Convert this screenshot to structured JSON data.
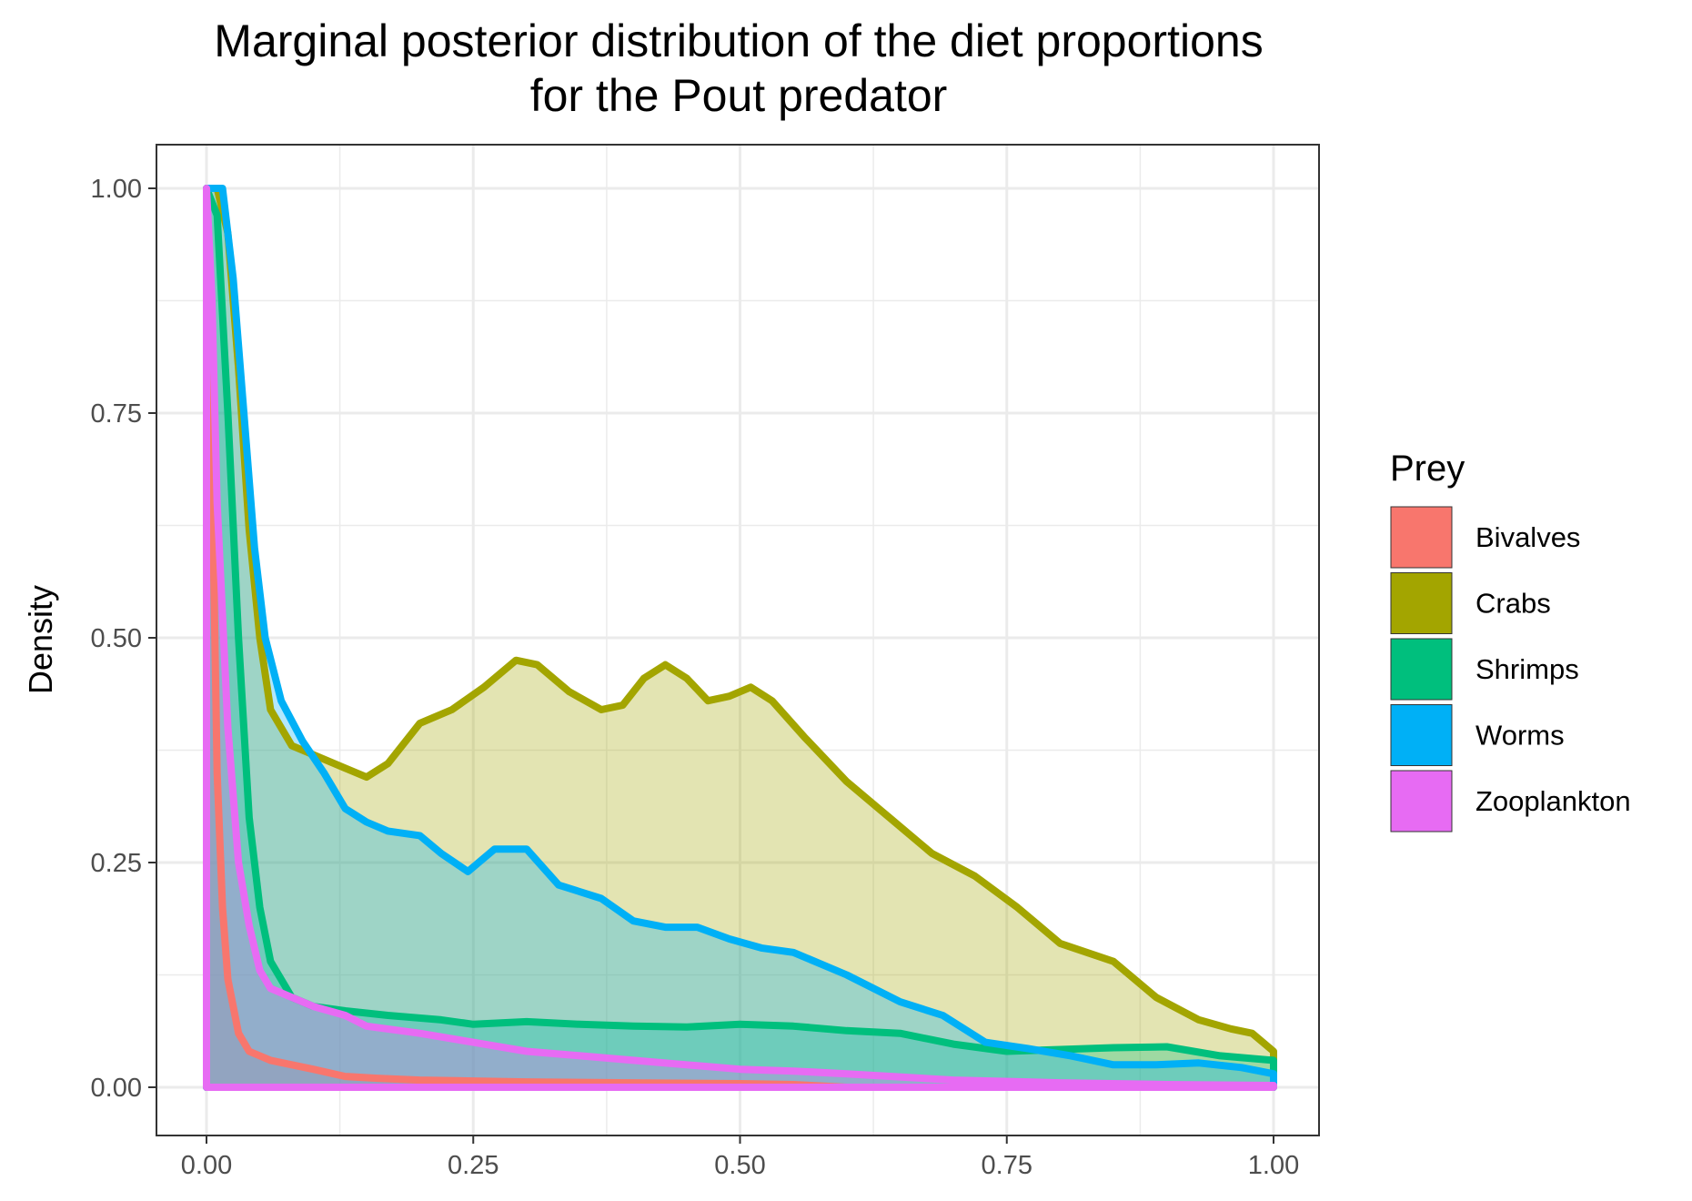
{
  "chart_data": {
    "type": "area",
    "title_lines": [
      "Marginal posterior distribution of the diet proportions",
      "for the Pout predator"
    ],
    "xlabel": "",
    "ylabel": "Density",
    "xlim": [
      0,
      1
    ],
    "ylim": [
      0,
      1
    ],
    "x_ticks": [
      "0.00",
      "0.25",
      "0.50",
      "0.75",
      "1.00"
    ],
    "y_ticks": [
      "0.00",
      "0.25",
      "0.50",
      "0.75",
      "1.00"
    ],
    "grid": true,
    "legend": {
      "title": "Prey",
      "position": "right"
    },
    "series": [
      {
        "name": "Bivalves",
        "color": "#F8766D",
        "points": [
          [
            0,
            1.0
          ],
          [
            0.005,
            0.7
          ],
          [
            0.01,
            0.35
          ],
          [
            0.015,
            0.2
          ],
          [
            0.02,
            0.12
          ],
          [
            0.03,
            0.06
          ],
          [
            0.04,
            0.04
          ],
          [
            0.06,
            0.03
          ],
          [
            0.08,
            0.025
          ],
          [
            0.1,
            0.02
          ],
          [
            0.13,
            0.012
          ],
          [
            0.16,
            0.01
          ],
          [
            0.2,
            0.008
          ],
          [
            0.25,
            0.007
          ],
          [
            0.3,
            0.006
          ],
          [
            0.4,
            0.005
          ],
          [
            0.5,
            0.004
          ],
          [
            0.55,
            0.003
          ],
          [
            0.6,
            0.0
          ]
        ]
      },
      {
        "name": "Crabs",
        "color": "#A3A500",
        "points": [
          [
            0,
            1.0
          ],
          [
            0.01,
            1.0
          ],
          [
            0.02,
            0.95
          ],
          [
            0.03,
            0.8
          ],
          [
            0.04,
            0.62
          ],
          [
            0.05,
            0.5
          ],
          [
            0.06,
            0.42
          ],
          [
            0.08,
            0.38
          ],
          [
            0.1,
            0.37
          ],
          [
            0.13,
            0.355
          ],
          [
            0.15,
            0.345
          ],
          [
            0.17,
            0.36
          ],
          [
            0.2,
            0.405
          ],
          [
            0.23,
            0.42
          ],
          [
            0.26,
            0.445
          ],
          [
            0.29,
            0.475
          ],
          [
            0.31,
            0.47
          ],
          [
            0.34,
            0.44
          ],
          [
            0.37,
            0.42
          ],
          [
            0.39,
            0.425
          ],
          [
            0.41,
            0.455
          ],
          [
            0.43,
            0.47
          ],
          [
            0.45,
            0.455
          ],
          [
            0.47,
            0.43
          ],
          [
            0.49,
            0.435
          ],
          [
            0.51,
            0.445
          ],
          [
            0.53,
            0.43
          ],
          [
            0.56,
            0.39
          ],
          [
            0.6,
            0.34
          ],
          [
            0.64,
            0.3
          ],
          [
            0.68,
            0.26
          ],
          [
            0.72,
            0.235
          ],
          [
            0.76,
            0.2
          ],
          [
            0.8,
            0.16
          ],
          [
            0.85,
            0.14
          ],
          [
            0.89,
            0.1
          ],
          [
            0.93,
            0.075
          ],
          [
            0.96,
            0.065
          ],
          [
            0.98,
            0.06
          ],
          [
            1.0,
            0.04
          ]
        ]
      },
      {
        "name": "Shrimps",
        "color": "#00BF7D",
        "points": [
          [
            0,
            1.0
          ],
          [
            0.01,
            0.97
          ],
          [
            0.02,
            0.75
          ],
          [
            0.03,
            0.5
          ],
          [
            0.04,
            0.3
          ],
          [
            0.05,
            0.2
          ],
          [
            0.06,
            0.14
          ],
          [
            0.08,
            0.1
          ],
          [
            0.1,
            0.09
          ],
          [
            0.13,
            0.085
          ],
          [
            0.17,
            0.08
          ],
          [
            0.22,
            0.075
          ],
          [
            0.25,
            0.07
          ],
          [
            0.3,
            0.073
          ],
          [
            0.35,
            0.07
          ],
          [
            0.4,
            0.068
          ],
          [
            0.45,
            0.067
          ],
          [
            0.5,
            0.07
          ],
          [
            0.55,
            0.068
          ],
          [
            0.6,
            0.063
          ],
          [
            0.65,
            0.06
          ],
          [
            0.7,
            0.048
          ],
          [
            0.75,
            0.04
          ],
          [
            0.8,
            0.042
          ],
          [
            0.85,
            0.044
          ],
          [
            0.9,
            0.045
          ],
          [
            0.95,
            0.035
          ],
          [
            1.0,
            0.03
          ]
        ]
      },
      {
        "name": "Worms",
        "color": "#00B0F6",
        "points": [
          [
            0,
            1.0
          ],
          [
            0.015,
            1.0
          ],
          [
            0.025,
            0.9
          ],
          [
            0.035,
            0.75
          ],
          [
            0.045,
            0.6
          ],
          [
            0.055,
            0.5
          ],
          [
            0.07,
            0.43
          ],
          [
            0.09,
            0.385
          ],
          [
            0.11,
            0.35
          ],
          [
            0.13,
            0.31
          ],
          [
            0.15,
            0.295
          ],
          [
            0.17,
            0.285
          ],
          [
            0.2,
            0.28
          ],
          [
            0.22,
            0.26
          ],
          [
            0.245,
            0.24
          ],
          [
            0.27,
            0.265
          ],
          [
            0.3,
            0.265
          ],
          [
            0.33,
            0.225
          ],
          [
            0.37,
            0.21
          ],
          [
            0.4,
            0.185
          ],
          [
            0.43,
            0.178
          ],
          [
            0.46,
            0.178
          ],
          [
            0.49,
            0.165
          ],
          [
            0.52,
            0.155
          ],
          [
            0.55,
            0.15
          ],
          [
            0.6,
            0.125
          ],
          [
            0.65,
            0.095
          ],
          [
            0.69,
            0.08
          ],
          [
            0.73,
            0.05
          ],
          [
            0.77,
            0.043
          ],
          [
            0.81,
            0.035
          ],
          [
            0.85,
            0.025
          ],
          [
            0.89,
            0.025
          ],
          [
            0.93,
            0.027
          ],
          [
            0.97,
            0.022
          ],
          [
            1.0,
            0.015
          ]
        ]
      },
      {
        "name": "Zooplankton",
        "color": "#E76BF3",
        "points": [
          [
            0,
            1.0
          ],
          [
            0.005,
            0.88
          ],
          [
            0.01,
            0.65
          ],
          [
            0.02,
            0.4
          ],
          [
            0.03,
            0.25
          ],
          [
            0.04,
            0.18
          ],
          [
            0.05,
            0.13
          ],
          [
            0.06,
            0.11
          ],
          [
            0.08,
            0.1
          ],
          [
            0.1,
            0.09
          ],
          [
            0.13,
            0.08
          ],
          [
            0.15,
            0.068
          ],
          [
            0.2,
            0.06
          ],
          [
            0.25,
            0.05
          ],
          [
            0.3,
            0.04
          ],
          [
            0.35,
            0.035
          ],
          [
            0.4,
            0.03
          ],
          [
            0.45,
            0.025
          ],
          [
            0.5,
            0.02
          ],
          [
            0.55,
            0.018
          ],
          [
            0.6,
            0.015
          ],
          [
            0.7,
            0.008
          ],
          [
            0.8,
            0.005
          ],
          [
            0.9,
            0.003
          ],
          [
            1.0,
            0.002
          ]
        ]
      }
    ]
  }
}
